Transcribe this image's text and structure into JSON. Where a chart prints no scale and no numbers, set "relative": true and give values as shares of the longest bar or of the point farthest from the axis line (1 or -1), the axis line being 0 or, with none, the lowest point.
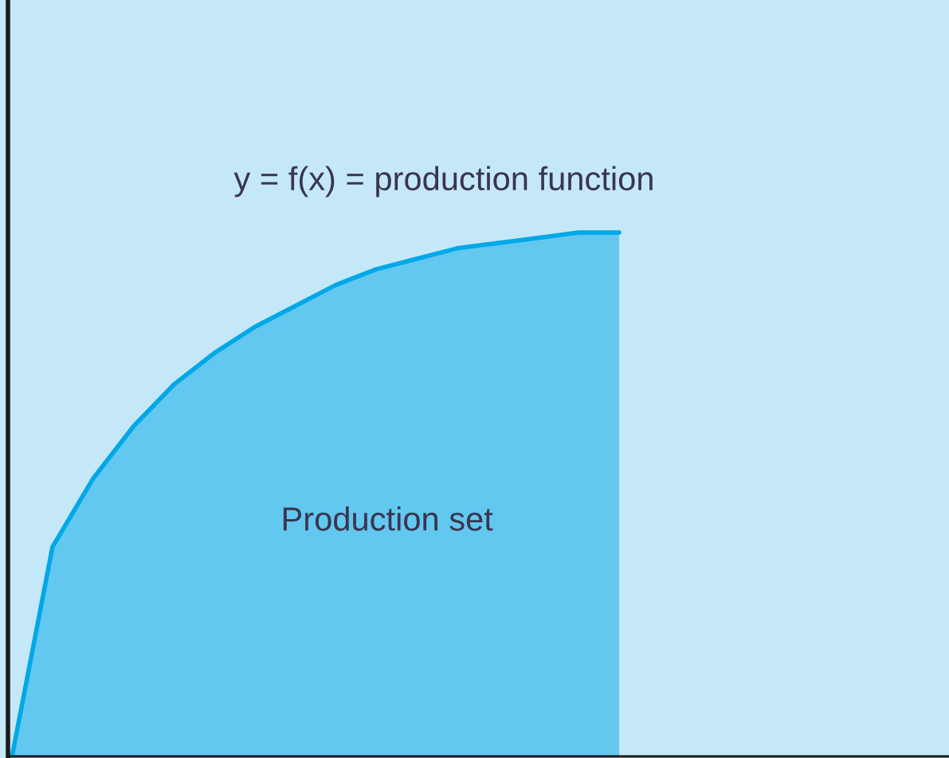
{
  "chart_data": {
    "type": "area",
    "relative": true,
    "categories": [
      null,
      null,
      null,
      null,
      null,
      null,
      null,
      null,
      null,
      null,
      null,
      null,
      null,
      null,
      null,
      null
    ],
    "series": [
      {
        "color": "#00a8e8",
        "values": [
          0,
          0.4,
          0.53,
          0.63,
          0.71,
          0.77,
          0.82,
          0.86,
          0.9,
          0.93,
          0.95,
          0.97,
          0.98,
          0.99,
          1.0,
          1.0
        ]
      }
    ],
    "annotations": [
      "y = f(x) = production function",
      "Production set"
    ]
  }
}
